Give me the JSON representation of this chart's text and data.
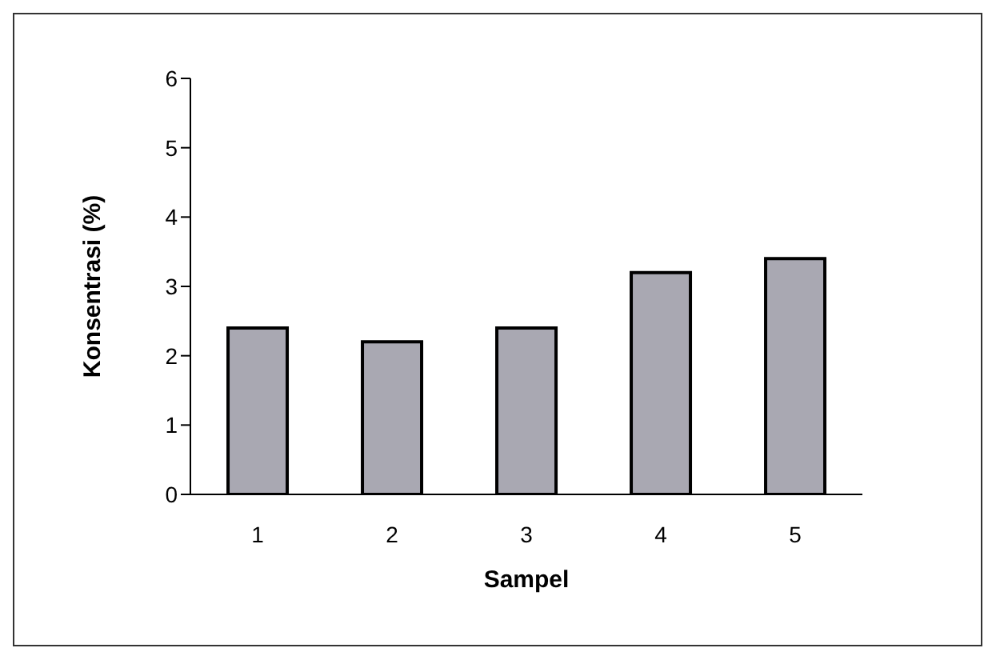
{
  "chart_data": {
    "type": "bar",
    "xlabel": "Sampel",
    "ylabel": "Konsentrasi (%)",
    "categories": [
      "1",
      "2",
      "3",
      "4",
      "5"
    ],
    "values": [
      2.4,
      2.2,
      2.4,
      3.2,
      3.4
    ],
    "color": "#a9a8b2",
    "ylim": [
      0,
      6
    ],
    "yticks": [
      0,
      1,
      2,
      3,
      4,
      5,
      6
    ],
    "grid": false
  }
}
